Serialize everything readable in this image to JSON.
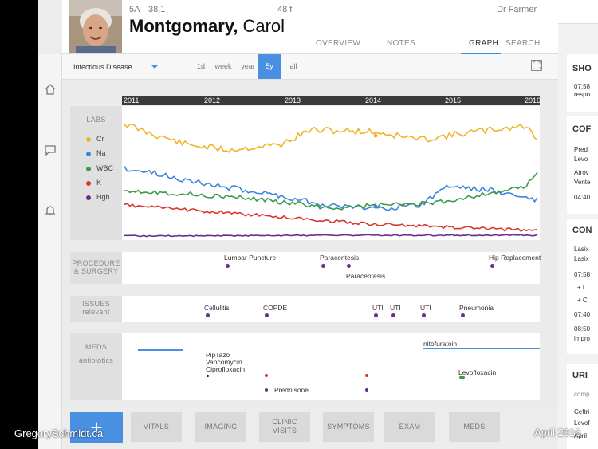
{
  "header": {
    "room": "5A",
    "temp": "38.1",
    "age_sex": "48 f",
    "doctor": "Dr Farmer",
    "last_name": "Montgomary,",
    "first_name": "Carol",
    "tabs": [
      {
        "label": "OVERVIEW"
      },
      {
        "label": "NOTES"
      },
      {
        "label": "GRAPH"
      },
      {
        "label": "SEARCH"
      }
    ]
  },
  "controls": {
    "department": "Infectious Disease",
    "ranges": [
      "1d",
      "week",
      "year",
      "5y",
      "all"
    ],
    "selected_range": "5y"
  },
  "timeline": {
    "years": [
      "2011",
      "2012",
      "2013",
      "2014",
      "2015",
      "2016"
    ]
  },
  "labs": {
    "title": "LABS",
    "legend": [
      {
        "name": "Cr",
        "color": "#f0b429"
      },
      {
        "name": "Na",
        "color": "#3d85de"
      },
      {
        "name": "WBC",
        "color": "#3a9a4a"
      },
      {
        "name": "K",
        "color": "#d9362b"
      },
      {
        "name": "Hgb",
        "color": "#6a2d8f"
      }
    ]
  },
  "procedures": {
    "title_line1": "PROCEDURE",
    "title_line2": "& SURGERY",
    "events": [
      {
        "label": "Lumbar Puncture"
      },
      {
        "label": "Paracentesis"
      },
      {
        "label": "Paracentesis"
      },
      {
        "label": "Hip Replacement"
      }
    ]
  },
  "issues": {
    "title": "ISSUES",
    "subtitle": "relevant",
    "events": [
      {
        "label": "Cellulitis"
      },
      {
        "label": "COPDE"
      },
      {
        "label": "UTI"
      },
      {
        "label": "UTI"
      },
      {
        "label": "UTI"
      },
      {
        "label": "Pneumonia"
      }
    ]
  },
  "meds": {
    "title": "MEDS",
    "subtitle": "antibiotics",
    "labels": [
      {
        "label": "PipTazo"
      },
      {
        "label": "Vancomycin"
      },
      {
        "label": "Ciprofloxacin"
      },
      {
        "label": "nitofuratoin"
      },
      {
        "label": "Levofloxacin"
      },
      {
        "label": "Prednisone"
      }
    ]
  },
  "bottom_tabs": {
    "add": "+",
    "tabs": [
      {
        "label": "VITALS"
      },
      {
        "label": "IMAGING"
      },
      {
        "label": "CLINIC"
      },
      {
        "label": "VISITS"
      },
      {
        "label": "SYMPTOMS"
      },
      {
        "label": "EXAM"
      },
      {
        "label": "MEDS"
      }
    ]
  },
  "right_panel": {
    "cards": [
      {
        "title": "SHO",
        "lines": [
          "07:58",
          "respo"
        ]
      },
      {
        "title": "COF",
        "lines": [
          "Predi",
          "Levo",
          "Atrov",
          "Vente",
          "04:40"
        ]
      },
      {
        "title": "CON",
        "lines": [
          "Lasix",
          "Lasix",
          "07:58",
          "+ L",
          "+ C",
          "07:40",
          "08:50",
          "impro"
        ]
      },
      {
        "title": "URI",
        "lines": [
          "comp",
          "Ceftri",
          "Levof",
          "April"
        ]
      }
    ]
  },
  "footer": {
    "credit": "GregorySchmidt.ca",
    "date": "April 2016"
  }
}
